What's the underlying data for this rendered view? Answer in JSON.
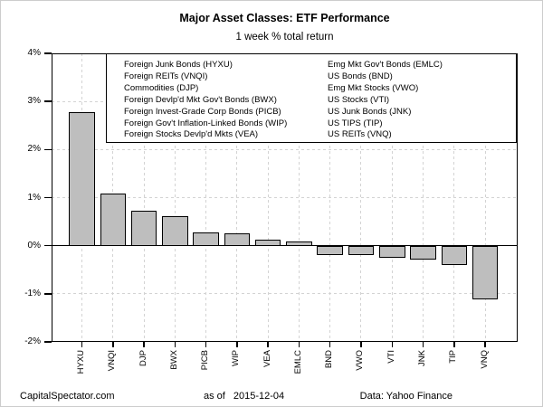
{
  "chart_data": {
    "type": "bar",
    "title": "Major Asset Classes: ETF Performance",
    "subtitle": "1 week % total return",
    "xlabel": "",
    "ylabel": "",
    "categories": [
      "HYXU",
      "VNQI",
      "DJP",
      "BWX",
      "PICB",
      "WIP",
      "VEA",
      "EMLC",
      "BND",
      "VWO",
      "VTI",
      "JNK",
      "TIP",
      "VNQ"
    ],
    "values": [
      2.78,
      1.08,
      0.72,
      0.61,
      0.27,
      0.26,
      0.13,
      0.08,
      -0.2,
      -0.2,
      -0.25,
      -0.29,
      -0.4,
      -1.11
    ],
    "ylim": [
      -2,
      4
    ],
    "yticks": [
      {
        "value": 4,
        "label": "4%"
      },
      {
        "value": 3,
        "label": "3%"
      },
      {
        "value": 2,
        "label": "2%"
      },
      {
        "value": 1,
        "label": "1%"
      },
      {
        "value": 0,
        "label": "0%"
      },
      {
        "value": -1,
        "label": "-1%"
      },
      {
        "value": -2,
        "label": "-2%"
      }
    ],
    "grid": "dashed gridlines at each y tick and each bar center; solid black line at 0%",
    "legend_position": "top inside plot, boxed, two columns",
    "bar_color": "#bebebe",
    "bar_border_color": "#000000",
    "grid_color": "#d3d3d3"
  },
  "legend": {
    "left_column": [
      "Foreign Junk Bonds (HYXU)",
      "Foreign REITs (VNQI)",
      "Commodities (DJP)",
      "Foreign Devlp'd Mkt Gov't Bonds (BWX)",
      "Foreign Invest-Grade Corp Bonds (PICB)",
      "Foreign Gov't Inflation-Linked Bonds (WIP)",
      "Foreign Stocks Devlp'd Mkts (VEA)"
    ],
    "right_column": [
      "Emg Mkt Gov't Bonds (EMLC)",
      "US Bonds (BND)",
      "Emg Mkt Stocks (VWO)",
      "US Stocks (VTI)",
      "US Junk Bonds (JNK)",
      "US TIPS (TIP)",
      "US REITs (VNQ)"
    ]
  },
  "footer": {
    "source": "CapitalSpectator.com",
    "as_of_label": "as of",
    "as_of_date": "2015-12-04",
    "credit": "Data: Yahoo Finance"
  }
}
